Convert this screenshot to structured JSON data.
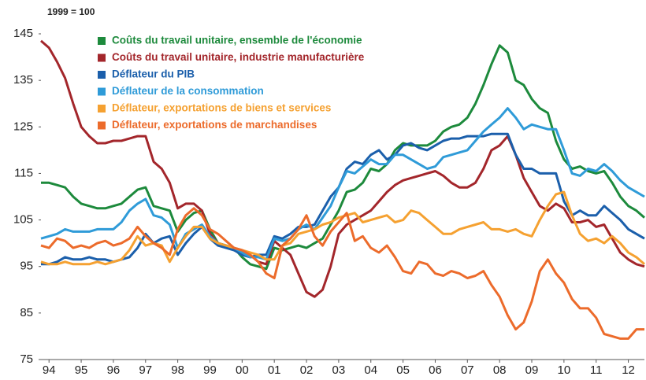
{
  "chart_data": {
    "type": "line",
    "subtitle": "1999 = 100",
    "x": [
      1993.75,
      1994,
      1994.25,
      1994.5,
      1994.75,
      1995,
      1995.25,
      1995.5,
      1995.75,
      1996,
      1996.25,
      1996.5,
      1996.75,
      1997,
      1997.25,
      1997.5,
      1997.75,
      1998,
      1998.25,
      1998.5,
      1998.75,
      1999,
      1999.25,
      1999.5,
      1999.75,
      2000,
      2000.25,
      2000.5,
      2000.75,
      2001,
      2001.25,
      2001.5,
      2001.75,
      2002,
      2002.25,
      2002.5,
      2002.75,
      2003,
      2003.25,
      2003.5,
      2003.75,
      2004,
      2004.25,
      2004.5,
      2004.75,
      2005,
      2005.25,
      2005.5,
      2005.75,
      2006,
      2006.25,
      2006.5,
      2006.75,
      2007,
      2007.25,
      2007.5,
      2007.75,
      2008,
      2008.25,
      2008.5,
      2008.75,
      2009,
      2009.25,
      2009.5,
      2009.75,
      2010,
      2010.25,
      2010.5,
      2010.75,
      2011,
      2011.25,
      2011.5,
      2011.75,
      2012,
      2012.25,
      2012.5
    ],
    "xlim": [
      1993.75,
      2012.5
    ],
    "xticks": [
      {
        "value": 1994,
        "label": "94"
      },
      {
        "value": 1995,
        "label": "95"
      },
      {
        "value": 1996,
        "label": "96"
      },
      {
        "value": 1997,
        "label": "97"
      },
      {
        "value": 1998,
        "label": "98"
      },
      {
        "value": 1999,
        "label": "99"
      },
      {
        "value": 2000,
        "label": "00"
      },
      {
        "value": 2001,
        "label": "01"
      },
      {
        "value": 2002,
        "label": "02"
      },
      {
        "value": 2003,
        "label": "03"
      },
      {
        "value": 2004,
        "label": "04"
      },
      {
        "value": 2005,
        "label": "05"
      },
      {
        "value": 2006,
        "label": "06"
      },
      {
        "value": 2007,
        "label": "07"
      },
      {
        "value": 2008,
        "label": "08"
      },
      {
        "value": 2009,
        "label": "09"
      },
      {
        "value": 2010,
        "label": "10"
      },
      {
        "value": 2011,
        "label": "11"
      },
      {
        "value": 2012,
        "label": "12"
      }
    ],
    "ylim": [
      75,
      145
    ],
    "yticks": [
      75,
      85,
      95,
      105,
      115,
      125,
      135,
      145
    ],
    "grid": false,
    "series": [
      {
        "name": "Coûts du travail unitaire, ensemble de l'économie",
        "color": "#1d8a3c",
        "values": [
          113,
          113,
          112.5,
          112,
          110,
          108.5,
          108,
          107.5,
          107.5,
          108,
          108.5,
          110,
          111.5,
          112,
          108,
          107.5,
          107,
          102.5,
          105,
          106.5,
          107,
          103,
          100,
          99.5,
          99,
          97,
          95.5,
          95,
          94.5,
          99,
          98.5,
          99,
          99.5,
          99,
          100,
          101,
          104,
          107,
          111,
          111.5,
          113,
          116,
          115.5,
          117,
          120,
          121.5,
          121,
          121,
          121,
          122,
          124,
          125,
          125.5,
          127,
          130,
          134,
          138.5,
          142.5,
          141,
          135,
          134,
          131,
          129,
          128,
          122,
          118,
          116,
          116.5,
          115.5,
          115,
          115.5,
          113,
          110,
          108,
          107,
          105.5
        ]
      },
      {
        "name": "Coûts du travail unitaire, industrie manufacturière",
        "color": "#a3262b",
        "values": [
          143.5,
          142,
          139,
          135.5,
          130,
          125,
          123,
          121.5,
          121.5,
          122,
          122,
          122.5,
          123,
          123,
          117.5,
          116,
          113,
          107.5,
          108.5,
          108.5,
          107,
          102,
          100,
          99.5,
          98.5,
          98,
          97.5,
          96,
          95.5,
          100.5,
          99,
          97.5,
          93.5,
          89.5,
          88.5,
          90,
          95,
          102,
          104,
          105,
          106,
          107,
          109,
          111,
          112.5,
          113.5,
          114,
          114.5,
          115,
          115.5,
          114.5,
          113,
          112,
          112,
          113,
          116,
          120,
          121,
          123,
          119,
          114,
          111,
          108,
          107,
          108.5,
          107.5,
          104.5,
          104.5,
          105,
          103.5,
          104,
          101,
          98,
          96.5,
          95.5,
          95
        ]
      },
      {
        "name": "Déflateur du PIB",
        "color": "#1b5fab",
        "values": [
          95.5,
          95.5,
          96,
          97,
          96.5,
          96.5,
          97,
          96.5,
          96.5,
          96,
          96.5,
          97,
          99,
          102,
          100,
          101,
          101.5,
          97.5,
          100,
          102,
          103.5,
          101,
          99.5,
          99,
          98.5,
          97.5,
          97,
          97.5,
          97.5,
          101.5,
          101,
          102,
          103.5,
          103.5,
          104,
          107,
          110,
          112,
          116,
          117.5,
          117,
          119,
          120,
          118,
          119,
          121,
          121.5,
          120.5,
          120,
          121,
          122,
          122.5,
          122.5,
          123,
          123,
          123,
          123.5,
          123.5,
          123.5,
          119,
          116,
          116,
          115,
          115,
          115,
          109,
          106,
          107,
          106,
          106,
          108,
          106.5,
          105,
          103,
          102,
          101
        ]
      },
      {
        "name": "Déflateur de la consommation",
        "color": "#2f9bd8",
        "values": [
          101,
          101.5,
          102,
          103,
          102.5,
          102.5,
          102.5,
          103,
          103,
          103,
          104.5,
          107,
          108.5,
          109.5,
          106,
          105.5,
          104,
          99,
          102,
          103,
          104,
          101.5,
          100,
          99.5,
          99,
          98,
          97,
          97,
          96.5,
          101,
          100.5,
          101,
          103,
          104,
          103,
          105.5,
          108,
          112,
          115.5,
          115,
          116.5,
          118,
          117,
          117,
          119,
          119,
          118,
          117,
          116,
          116.5,
          118.5,
          119,
          119.5,
          120,
          122,
          124,
          125.5,
          127,
          129,
          127,
          124.5,
          125.5,
          125,
          124.5,
          124.5,
          120,
          115,
          114.5,
          116,
          115.5,
          117,
          115.5,
          113.5,
          112,
          111,
          110
        ]
      },
      {
        "name": "Déflateur, exportations de biens et services",
        "color": "#f5a131",
        "values": [
          96,
          95.5,
          95.5,
          96,
          95.5,
          95.5,
          95.5,
          96,
          95.5,
          96,
          96.5,
          98.5,
          101.5,
          99.5,
          100,
          99.5,
          96,
          99,
          101.5,
          103.5,
          103.5,
          101,
          100,
          99.5,
          99,
          98.5,
          98,
          97.5,
          96.5,
          96.5,
          99.5,
          100,
          102,
          102.5,
          103,
          104,
          104.5,
          105.5,
          106,
          106.5,
          104.5,
          105,
          105.5,
          106,
          104.5,
          105,
          107,
          106.5,
          105,
          103.5,
          102,
          102,
          103,
          103.5,
          104,
          104.5,
          103,
          103,
          102.5,
          103,
          102,
          101.5,
          105,
          108,
          110.5,
          111,
          106,
          102,
          100.5,
          101,
          100,
          101.5,
          100,
          98,
          97,
          95.5
        ]
      },
      {
        "name": "Déflateur, exportations de marchandises",
        "color": "#ec6b2b",
        "values": [
          99.5,
          99,
          101,
          100.5,
          99,
          99.5,
          99,
          100,
          100.5,
          99.5,
          100,
          101,
          103.5,
          101.5,
          100,
          99,
          97.5,
          103,
          106,
          107.5,
          106,
          103,
          102,
          100.5,
          99,
          98.5,
          97.5,
          96,
          93.5,
          92.5,
          99.5,
          101,
          103,
          106,
          101.5,
          99.5,
          102.5,
          104.5,
          106.5,
          100.5,
          101.5,
          99,
          98,
          99.5,
          97,
          94,
          93.5,
          96,
          95.5,
          93.5,
          93,
          94,
          93.5,
          92.5,
          93,
          94,
          91,
          88.5,
          84.5,
          81.5,
          83,
          87.5,
          94,
          96.5,
          93.5,
          91.5,
          88,
          86,
          86,
          84,
          80.5,
          80,
          79.5,
          79.5,
          81.5,
          81.5
        ]
      }
    ]
  }
}
